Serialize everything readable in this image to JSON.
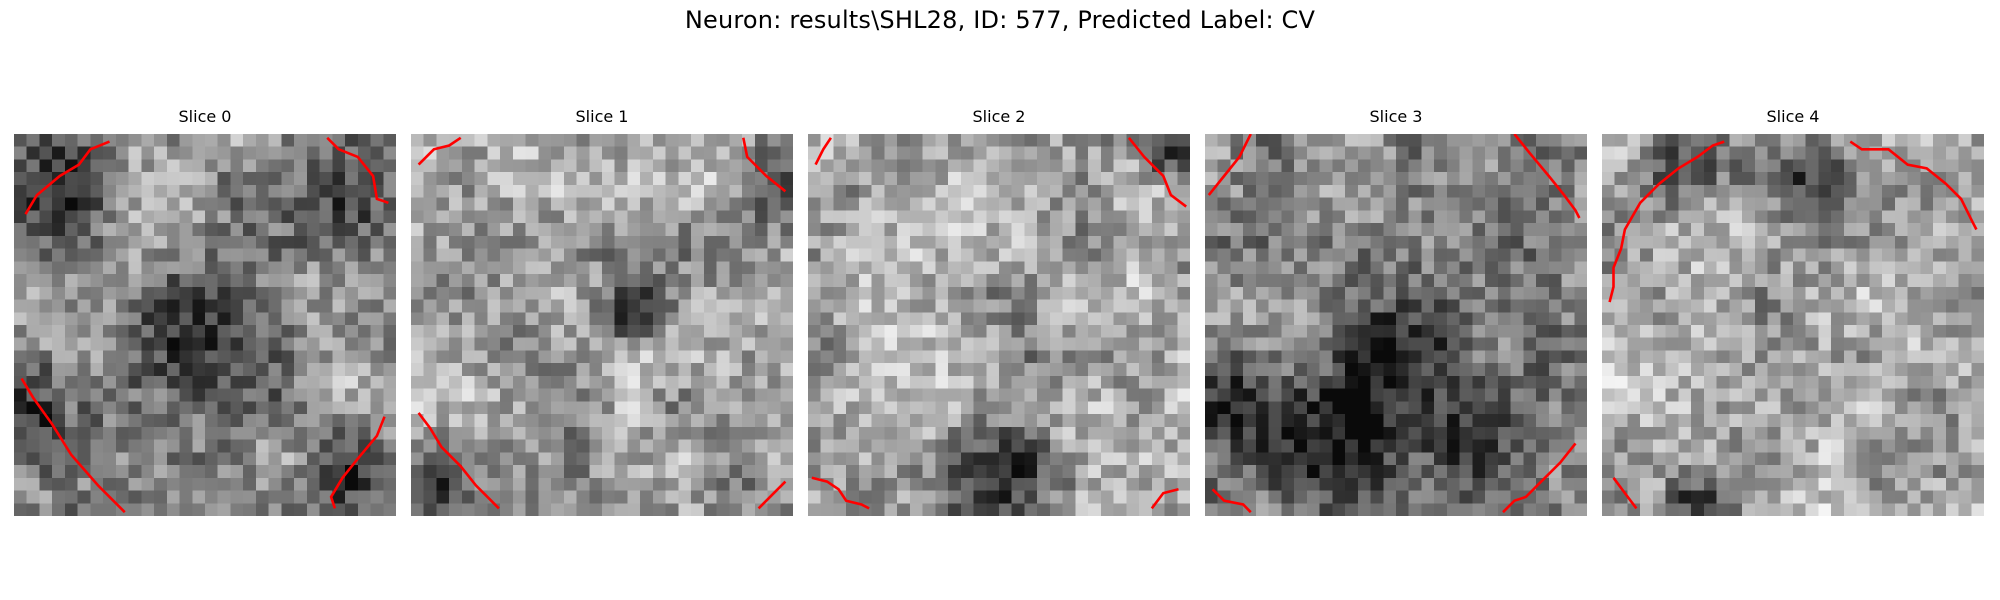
{
  "figure": {
    "title": "Neuron: results\\SHL28, ID: 577, Predicted Label: CV"
  },
  "colors": {
    "contour": "#ff0000",
    "background": "#ffffff",
    "colormap": "grayscale"
  },
  "grid_size": 30,
  "slices": [
    {
      "title": "Slice 0",
      "base_level": 0.58,
      "dark_spots": [
        [
          0.12,
          0.15,
          0.22
        ],
        [
          0.88,
          0.17,
          0.2
        ],
        [
          0.52,
          0.52,
          0.3
        ],
        [
          0.08,
          0.75,
          0.2
        ],
        [
          0.88,
          0.88,
          0.2
        ]
      ],
      "contours": [
        [
          [
            0.03,
            0.21
          ],
          [
            0.06,
            0.16
          ],
          [
            0.12,
            0.11
          ],
          [
            0.17,
            0.08
          ],
          [
            0.2,
            0.04
          ],
          [
            0.25,
            0.02
          ]
        ],
        [
          [
            0.82,
            0.01
          ],
          [
            0.85,
            0.04
          ],
          [
            0.9,
            0.06
          ],
          [
            0.94,
            0.11
          ],
          [
            0.95,
            0.17
          ],
          [
            0.98,
            0.18
          ]
        ],
        [
          [
            0.02,
            0.64
          ],
          [
            0.05,
            0.69
          ],
          [
            0.1,
            0.76
          ],
          [
            0.15,
            0.84
          ],
          [
            0.22,
            0.92
          ],
          [
            0.26,
            0.96
          ],
          [
            0.29,
            0.99
          ]
        ],
        [
          [
            0.97,
            0.74
          ],
          [
            0.95,
            0.79
          ],
          [
            0.9,
            0.85
          ],
          [
            0.86,
            0.9
          ],
          [
            0.83,
            0.95
          ],
          [
            0.84,
            0.98
          ]
        ]
      ]
    },
    {
      "title": "Slice 1",
      "base_level": 0.62,
      "dark_spots": [
        [
          0.59,
          0.47,
          0.12
        ],
        [
          0.07,
          0.93,
          0.18
        ],
        [
          0.95,
          0.14,
          0.15
        ]
      ],
      "contours": [
        [
          [
            0.02,
            0.08
          ],
          [
            0.06,
            0.04
          ],
          [
            0.1,
            0.03
          ],
          [
            0.13,
            0.01
          ]
        ],
        [
          [
            0.87,
            0.01
          ],
          [
            0.88,
            0.06
          ],
          [
            0.93,
            0.11
          ],
          [
            0.98,
            0.15
          ]
        ],
        [
          [
            0.02,
            0.73
          ],
          [
            0.05,
            0.77
          ],
          [
            0.08,
            0.82
          ],
          [
            0.13,
            0.87
          ],
          [
            0.17,
            0.92
          ],
          [
            0.21,
            0.96
          ],
          [
            0.23,
            0.98
          ]
        ],
        [
          [
            0.91,
            0.98
          ],
          [
            0.95,
            0.94
          ],
          [
            0.98,
            0.91
          ]
        ]
      ]
    },
    {
      "title": "Slice 2",
      "base_level": 0.63,
      "dark_spots": [
        [
          0.96,
          0.05,
          0.12
        ],
        [
          0.5,
          0.95,
          0.25
        ]
      ],
      "contours": [
        [
          [
            0.02,
            0.08
          ],
          [
            0.04,
            0.04
          ],
          [
            0.06,
            0.01
          ]
        ],
        [
          [
            0.84,
            0.01
          ],
          [
            0.88,
            0.06
          ],
          [
            0.93,
            0.11
          ],
          [
            0.95,
            0.16
          ],
          [
            0.99,
            0.19
          ]
        ],
        [
          [
            0.01,
            0.9
          ],
          [
            0.05,
            0.91
          ],
          [
            0.08,
            0.93
          ],
          [
            0.1,
            0.96
          ],
          [
            0.14,
            0.97
          ],
          [
            0.16,
            0.98
          ]
        ],
        [
          [
            0.9,
            0.98
          ],
          [
            0.93,
            0.94
          ],
          [
            0.97,
            0.93
          ]
        ]
      ]
    },
    {
      "title": "Slice 3",
      "base_level": 0.55,
      "dark_spots": [
        [
          0.3,
          0.87,
          0.25
        ],
        [
          0.7,
          0.78,
          0.2
        ],
        [
          0.5,
          0.6,
          0.3
        ],
        [
          0.1,
          0.7,
          0.2
        ]
      ],
      "contours": [
        [
          [
            0.01,
            0.16
          ],
          [
            0.05,
            0.11
          ],
          [
            0.09,
            0.06
          ],
          [
            0.11,
            0.02
          ],
          [
            0.12,
            0.0
          ]
        ],
        [
          [
            0.81,
            0.0
          ],
          [
            0.85,
            0.05
          ],
          [
            0.9,
            0.11
          ],
          [
            0.94,
            0.16
          ],
          [
            0.97,
            0.2
          ],
          [
            0.98,
            0.22
          ]
        ],
        [
          [
            0.02,
            0.93
          ],
          [
            0.05,
            0.96
          ],
          [
            0.1,
            0.97
          ],
          [
            0.12,
            0.99
          ]
        ],
        [
          [
            0.78,
            0.99
          ],
          [
            0.81,
            0.96
          ],
          [
            0.84,
            0.95
          ],
          [
            0.88,
            0.91
          ],
          [
            0.93,
            0.86
          ],
          [
            0.97,
            0.81
          ]
        ]
      ]
    },
    {
      "title": "Slice 4",
      "base_level": 0.65,
      "dark_spots": [
        [
          0.25,
          0.08,
          0.18
        ],
        [
          0.5,
          0.1,
          0.2
        ],
        [
          0.25,
          0.97,
          0.12
        ]
      ],
      "contours": [
        [
          [
            0.02,
            0.44
          ],
          [
            0.03,
            0.4
          ],
          [
            0.03,
            0.35
          ],
          [
            0.05,
            0.3
          ],
          [
            0.06,
            0.25
          ],
          [
            0.1,
            0.18
          ],
          [
            0.15,
            0.13
          ],
          [
            0.2,
            0.09
          ],
          [
            0.25,
            0.06
          ],
          [
            0.29,
            0.03
          ],
          [
            0.32,
            0.02
          ]
        ],
        [
          [
            0.65,
            0.02
          ],
          [
            0.68,
            0.04
          ],
          [
            0.75,
            0.04
          ],
          [
            0.8,
            0.08
          ],
          [
            0.85,
            0.09
          ],
          [
            0.9,
            0.13
          ],
          [
            0.94,
            0.17
          ],
          [
            0.97,
            0.23
          ],
          [
            0.98,
            0.25
          ]
        ],
        [
          [
            0.03,
            0.9
          ],
          [
            0.06,
            0.94
          ],
          [
            0.09,
            0.98
          ]
        ]
      ]
    }
  ]
}
